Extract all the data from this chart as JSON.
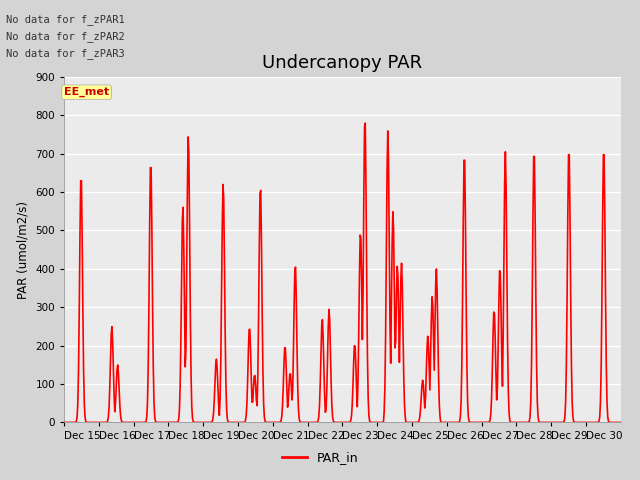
{
  "title": "Undercanopy PAR",
  "ylabel": "PAR (umol/m2/s)",
  "ylim": [
    0,
    900
  ],
  "yticks": [
    0,
    100,
    200,
    300,
    400,
    500,
    600,
    700,
    800,
    900
  ],
  "line_color": "#FF0000",
  "line_width": 1.2,
  "fig_bg_color": "#d4d4d4",
  "plot_bg_color": "#ebebeb",
  "grid_color": "#ffffff",
  "legend_label": "PAR_in",
  "annotations": [
    "No data for f_zPAR1",
    "No data for f_zPAR2",
    "No data for f_zPAR3"
  ],
  "annotation_color": "#333333",
  "annotation_fontsize": 7.5,
  "ee_met_label": "EE_met",
  "ee_met_bg": "#ffff99",
  "ee_met_color": "#cc0000",
  "ee_met_fontsize": 8,
  "x_tick_labels": [
    "Dec 15",
    "Dec 16",
    "Dec 17",
    "Dec 18",
    "Dec 19",
    "Dec 20",
    "Dec 21",
    "Dec 22",
    "Dec 23",
    "Dec 24",
    "Dec 25",
    "Dec 26",
    "Dec 27",
    "Dec 28",
    "Dec 29",
    "Dec 30"
  ],
  "title_fontsize": 13,
  "tick_fontsize": 7.5,
  "label_fontsize": 8.5,
  "legend_fontsize": 9,
  "n_days": 16
}
